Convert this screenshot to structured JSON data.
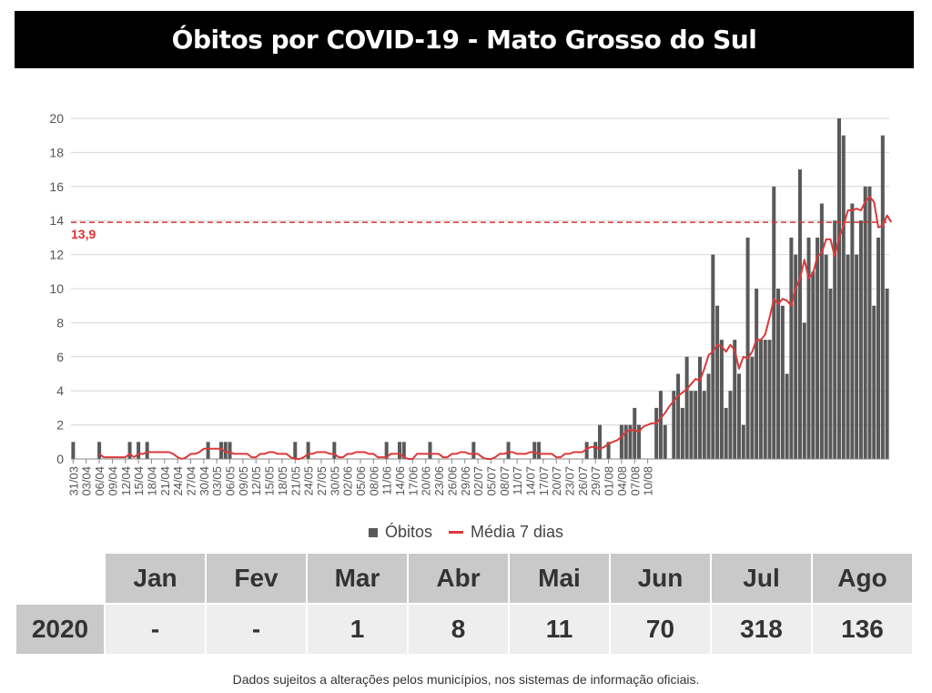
{
  "title": "Óbitos por COVID-19 - Mato Grosso do Sul",
  "chart_data": {
    "type": "bar",
    "ylim": [
      0,
      20
    ],
    "yticks": [
      0,
      2,
      4,
      6,
      8,
      10,
      12,
      14,
      16,
      18,
      20
    ],
    "grid": true,
    "legend_position": "bottom",
    "x_tick_labels": [
      "31/03",
      "03/04",
      "06/04",
      "09/04",
      "12/04",
      "15/04",
      "18/04",
      "21/04",
      "24/04",
      "27/04",
      "30/04",
      "03/05",
      "06/05",
      "09/05",
      "12/05",
      "15/05",
      "18/05",
      "21/05",
      "24/05",
      "27/05",
      "30/05",
      "02/06",
      "05/06",
      "08/06",
      "11/06",
      "14/06",
      "17/06",
      "20/06",
      "23/06",
      "26/06",
      "29/06",
      "02/07",
      "05/07",
      "08/07",
      "11/07",
      "14/07",
      "17/07",
      "20/07",
      "23/07",
      "26/07",
      "29/07",
      "01/08",
      "04/08",
      "07/08",
      "10/08"
    ],
    "reference_line": {
      "value": 13.9,
      "label": "13,9",
      "color": "#e03030"
    },
    "series": [
      {
        "name": "Óbitos",
        "kind": "bar",
        "color": "#595959",
        "values": [
          1,
          0,
          0,
          0,
          0,
          0,
          1,
          0,
          0,
          0,
          0,
          0,
          0,
          1,
          0,
          1,
          0,
          1,
          0,
          0,
          0,
          0,
          0,
          0,
          0,
          0,
          0,
          0,
          0,
          0,
          0,
          1,
          0,
          0,
          1,
          1,
          1,
          0,
          0,
          0,
          0,
          0,
          0,
          0,
          0,
          0,
          0,
          0,
          0,
          0,
          0,
          1,
          0,
          0,
          1,
          0,
          0,
          0,
          0,
          0,
          1,
          0,
          0,
          0,
          0,
          0,
          0,
          0,
          0,
          0,
          0,
          0,
          1,
          0,
          0,
          1,
          1,
          0,
          0,
          0,
          0,
          0,
          1,
          0,
          0,
          0,
          0,
          0,
          0,
          0,
          0,
          0,
          1,
          0,
          0,
          0,
          0,
          0,
          0,
          0,
          1,
          0,
          0,
          0,
          0,
          0,
          1,
          1,
          0,
          0,
          0,
          0,
          0,
          0,
          0,
          0,
          0,
          0,
          1,
          0,
          1,
          2,
          0,
          1,
          0,
          0,
          2,
          2,
          2,
          3,
          2,
          0,
          0,
          0,
          3,
          4,
          2,
          0,
          4,
          5,
          3,
          6,
          4,
          4,
          6,
          4,
          5,
          12,
          9,
          7,
          3,
          4,
          7,
          5,
          2,
          13,
          6,
          10,
          7,
          7,
          7,
          16,
          10,
          9,
          5,
          13,
          12,
          17,
          8,
          13,
          11,
          13,
          15,
          12,
          10,
          14,
          20,
          19,
          12,
          15,
          12,
          14,
          16,
          16,
          9,
          13,
          19,
          10
        ]
      },
      {
        "name": "Média 7 dias",
        "kind": "line",
        "color": "#d93a3a",
        "values": [
          null,
          null,
          null,
          null,
          null,
          null,
          0.3,
          0.1,
          0.1,
          0.1,
          0.1,
          0.1,
          0.1,
          0.3,
          0.1,
          0.3,
          0.3,
          0.4,
          0.4,
          0.4,
          0.4,
          0.4,
          0.4,
          0.3,
          0.1,
          0.0,
          0.1,
          0.3,
          0.3,
          0.4,
          0.6,
          0.6,
          0.6,
          0.6,
          0.6,
          0.4,
          0.4,
          0.3,
          0.3,
          0.3,
          0.3,
          0.1,
          0.1,
          0.3,
          0.3,
          0.4,
          0.4,
          0.3,
          0.3,
          0.3,
          0.1,
          0.0,
          0.0,
          0.1,
          0.3,
          0.3,
          0.4,
          0.4,
          0.4,
          0.3,
          0.3,
          0.1,
          0.1,
          0.3,
          0.3,
          0.4,
          0.4,
          0.4,
          0.3,
          0.3,
          0.1,
          0.1,
          0.1,
          0.3,
          0.3,
          0.3,
          0.1,
          0.0,
          0.0,
          0.3,
          0.3,
          0.3,
          0.3,
          0.3,
          0.3,
          0.1,
          0.1,
          0.3,
          0.3,
          0.4,
          0.4,
          0.3,
          0.3,
          0.3,
          0.1,
          0.0,
          0.0,
          0.1,
          0.3,
          0.3,
          0.4,
          0.4,
          0.3,
          0.3,
          0.3,
          0.4,
          0.4,
          0.3,
          0.3,
          0.3,
          0.3,
          0.1,
          0.1,
          0.3,
          0.3,
          0.4,
          0.4,
          0.4,
          0.6,
          0.7,
          0.7,
          0.6,
          0.7,
          0.9,
          1.0,
          1.1,
          1.3,
          1.6,
          1.7,
          1.7,
          1.6,
          1.9,
          2.0,
          2.1,
          2.1,
          2.4,
          2.7,
          3.1,
          3.4,
          3.7,
          3.9,
          4.1,
          4.4,
          4.7,
          4.6,
          5.3,
          6.1,
          6.3,
          6.7,
          6.6,
          6.3,
          6.7,
          6.4,
          5.3,
          6.0,
          5.9,
          6.3,
          7.0,
          7.0,
          7.3,
          8.3,
          9.4,
          9.1,
          9.4,
          9.3,
          9.0,
          10.0,
          10.6,
          11.7,
          10.6,
          10.9,
          11.9,
          12.1,
          12.9,
          12.9,
          11.9,
          13.0,
          13.7,
          14.6,
          14.6,
          14.7,
          14.6,
          15.1,
          15.4,
          15.1,
          13.6,
          13.7,
          14.3,
          13.9
        ]
      }
    ]
  },
  "summary_table": {
    "months": [
      "Jan",
      "Fev",
      "Mar",
      "Abr",
      "Mai",
      "Jun",
      "Jul",
      "Ago"
    ],
    "year": "2020",
    "values": [
      "-",
      "-",
      "1",
      "8",
      "11",
      "70",
      "318",
      "136"
    ]
  },
  "footnote": "Dados sujeitos a alterações pelos municípios, nos sistemas de informação oficiais."
}
